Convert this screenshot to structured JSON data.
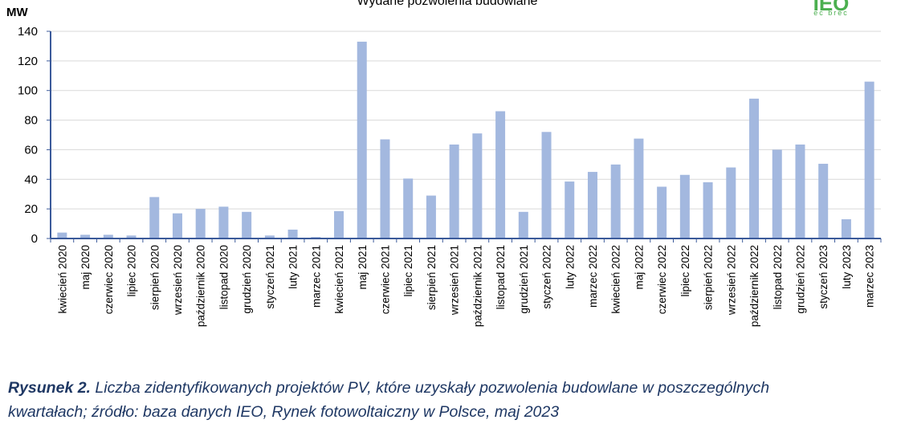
{
  "chart_data": {
    "type": "bar",
    "title": "Wydane pozwolenia budowlane",
    "ylabel": "MW",
    "ylim": [
      0,
      140
    ],
    "yticks": [
      0,
      20,
      40,
      60,
      80,
      100,
      120,
      140
    ],
    "grid": true,
    "bar_color": "#a3b8df",
    "categories": [
      "kwiecień 2020",
      "maj 2020",
      "czerwiec 2020",
      "lipiec 2020",
      "sierpień 2020",
      "wrzesień 2020",
      "październik 2020",
      "listopad 2020",
      "grudzień 2020",
      "styczeń 2021",
      "luty 2021",
      "marzec 2021",
      "kwiecień 2021",
      "maj 2021",
      "czerwiec 2021",
      "lipiec 2021",
      "sierpień 2021",
      "wrzesień 2021",
      "październik 2021",
      "listopad 2021",
      "grudzień 2021",
      "styczeń 2022",
      "luty 2022",
      "marzec 2022",
      "kwiecień 2022",
      "maj 2022",
      "czerwiec 2022",
      "lipiec 2022",
      "sierpień 2022",
      "wrzesień 2022",
      "październik 2022",
      "listopad 2022",
      "grudzień 2022",
      "styczeń 2023",
      "luty 2023",
      "marzec 2023"
    ],
    "values": [
      4,
      2.5,
      2.5,
      2,
      28,
      17,
      20,
      21.5,
      18,
      2,
      6,
      1,
      18.5,
      133,
      67,
      40.5,
      29,
      63.5,
      71,
      86,
      18,
      72,
      38.5,
      45,
      50,
      67.5,
      35,
      43,
      38,
      48,
      94.5,
      60,
      63.5,
      50.5,
      13,
      106
    ]
  },
  "logo": {
    "main": "IEO",
    "sub": "ec brec",
    "color": "#4caf50"
  },
  "caption": {
    "label": "Rysunek 2.",
    "text": "Liczba zidentyfikowanych projektów PV, które uzyskały pozwolenia budowlane w poszczególnych",
    "line2": "kwartałach; źródło: baza danych IEO, Rynek fotowoltaiczny w Polsce, maj 2023",
    "color": "#1f3864"
  }
}
